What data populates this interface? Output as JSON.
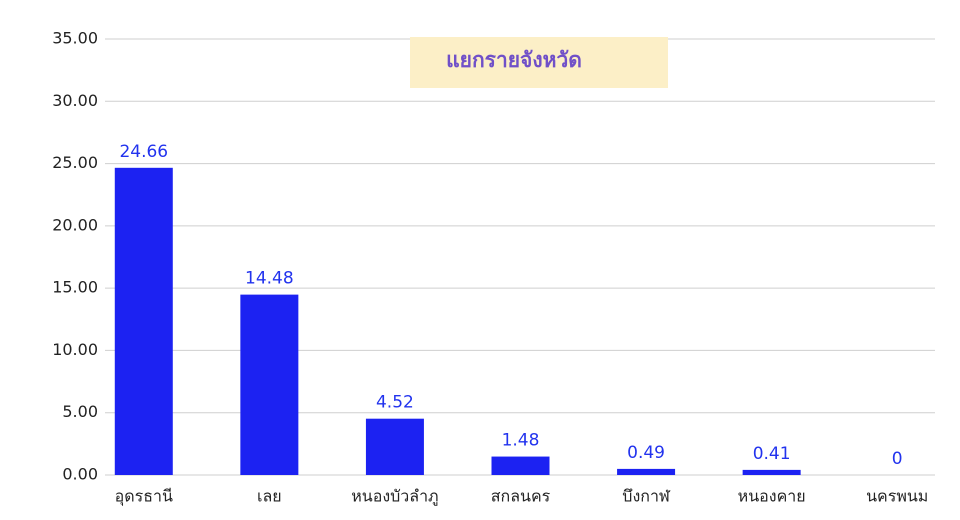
{
  "chart_data": {
    "type": "bar",
    "title": "แยกรายจังหวัด",
    "categories": [
      "อุดรธานี",
      "เลย",
      "หนองบัวลำภู",
      "สกลนคร",
      "บึงกาฬ",
      "หนองคาย",
      "นครพนม"
    ],
    "values": [
      24.66,
      14.48,
      4.52,
      1.48,
      0.49,
      0.41,
      0
    ],
    "color": "#1c22f2",
    "ylim": [
      0,
      35
    ],
    "yticks": [
      {
        "value": 0,
        "label": "0.00"
      },
      {
        "value": 5,
        "label": "5.00"
      },
      {
        "value": 10,
        "label": "10.00"
      },
      {
        "value": 15,
        "label": "15.00"
      },
      {
        "value": 20,
        "label": "20.00"
      },
      {
        "value": 25,
        "label": "25.00"
      },
      {
        "value": 30,
        "label": "30.00"
      },
      {
        "value": 35,
        "label": "35.00"
      }
    ],
    "grid": true
  }
}
